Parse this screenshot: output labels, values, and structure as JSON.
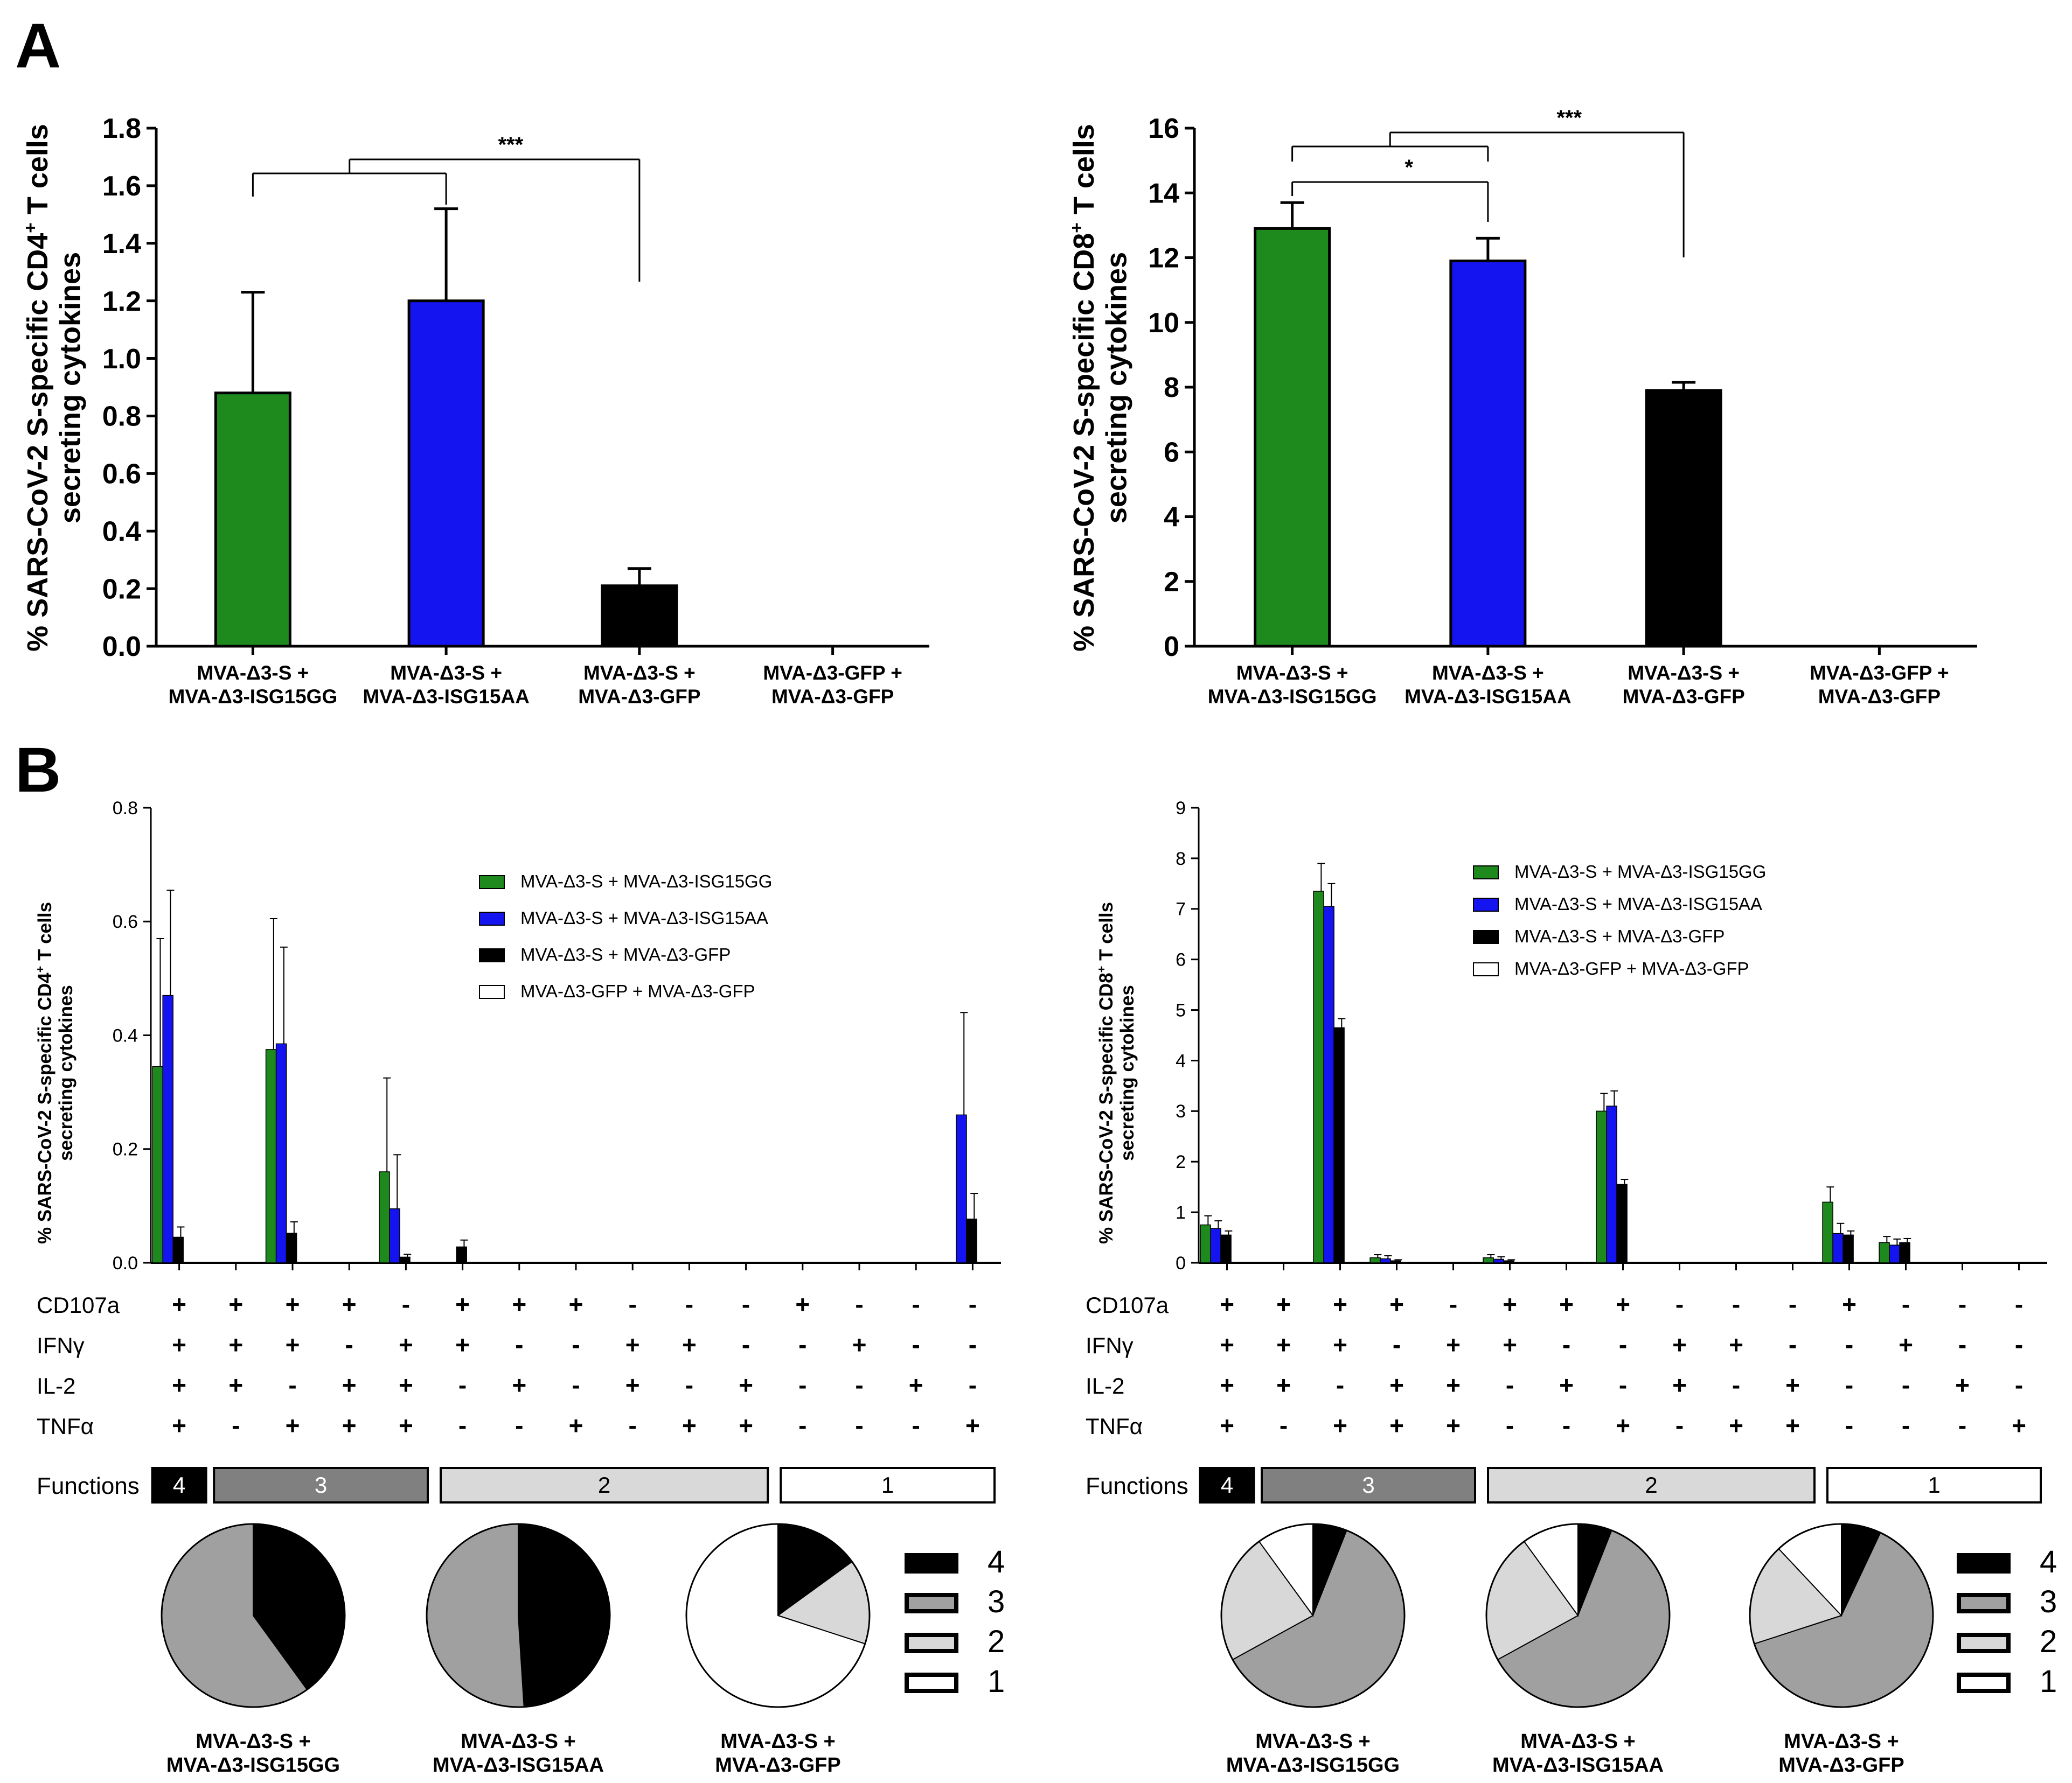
{
  "panel_labels": [
    "A",
    "B"
  ],
  "colors": {
    "green": "#1e8a1e",
    "blue": "#1414f0",
    "black": "#000000",
    "white": "#ffffff",
    "f4": "#000000",
    "f3": "#a0a0a0",
    "f2": "#d8d8d8",
    "f1": "#ffffff",
    "box3": "#808080",
    "box2": "#d9d9d9",
    "box1": "#ffffff"
  },
  "chart_data": [
    {
      "id": "A-left",
      "type": "bar",
      "ylabel_line1": "% SARS-CoV-2 S-specific CD4",
      "ylabel_sup": "+",
      "ylabel_line1_tail": " T cells",
      "ylabel_line2": "secreting cytokines",
      "ylim": [
        0,
        1.8
      ],
      "ticks": [
        0.0,
        0.2,
        0.4,
        0.6,
        0.8,
        1.0,
        1.2,
        1.4,
        1.6,
        1.8
      ],
      "tick_labels": [
        "0.0",
        "0.2",
        "0.4",
        "0.6",
        "0.8",
        "1.0",
        "1.2",
        "1.4",
        "1.6",
        "1.8"
      ],
      "categories": [
        [
          "MVA-Δ3-S +",
          "MVA-Δ3-ISG15GG"
        ],
        [
          "MVA-Δ3-S +",
          "MVA-Δ3-ISG15AA"
        ],
        [
          "MVA-Δ3-S +",
          "MVA-Δ3-GFP"
        ],
        [
          "MVA-Δ3-GFP +",
          "MVA-Δ3-GFP"
        ]
      ],
      "values": [
        0.88,
        1.2,
        0.21,
        0
      ],
      "errors": [
        0.35,
        0.32,
        0.06,
        0
      ],
      "colors": [
        "green",
        "blue",
        "black",
        "white"
      ],
      "significance": [
        {
          "label": "***",
          "groups": [
            [
              0,
              1
            ],
            [
              2
            ]
          ]
        }
      ]
    },
    {
      "id": "A-right",
      "type": "bar",
      "ylabel_line1": "% SARS-CoV-2 S-specific CD8",
      "ylabel_sup": "+",
      "ylabel_line1_tail": " T cells",
      "ylabel_line2": "secreting cytokines",
      "ylim": [
        0,
        16
      ],
      "ticks": [
        0,
        2,
        4,
        6,
        8,
        10,
        12,
        14,
        16
      ],
      "tick_labels": [
        "0",
        "2",
        "4",
        "6",
        "8",
        "10",
        "12",
        "14",
        "16"
      ],
      "categories": [
        [
          "MVA-Δ3-S +",
          "MVA-Δ3-ISG15GG"
        ],
        [
          "MVA-Δ3-S +",
          "MVA-Δ3-ISG15AA"
        ],
        [
          "MVA-Δ3-S +",
          "MVA-Δ3-GFP"
        ],
        [
          "MVA-Δ3-GFP +",
          "MVA-Δ3-GFP"
        ]
      ],
      "values": [
        12.9,
        11.9,
        7.9,
        0
      ],
      "errors": [
        0.8,
        0.7,
        0.25,
        0
      ],
      "colors": [
        "green",
        "blue",
        "black",
        "white"
      ],
      "significance": [
        {
          "label": "*",
          "groups": [
            [
              0
            ],
            [
              1
            ]
          ]
        },
        {
          "label": "***",
          "groups": [
            [
              0,
              1
            ],
            [
              2
            ]
          ]
        }
      ]
    },
    {
      "id": "B-left",
      "type": "grouped-bar",
      "ylabel_line1": "% SARS-CoV-2 S-specific CD4",
      "ylabel_sup": "+",
      "ylabel_line1_tail": " T cells",
      "ylabel_line2": "secreting cytokines",
      "ylim": [
        0,
        0.8
      ],
      "ticks": [
        0.0,
        0.2,
        0.4,
        0.6,
        0.8
      ],
      "tick_labels": [
        "0.0",
        "0.2",
        "0.4",
        "0.6",
        "0.8"
      ],
      "series": [
        {
          "name": "MVA-Δ3-S + MVA-Δ3-ISG15GG",
          "color": "green",
          "values": [
            0.345,
            0,
            0.375,
            0,
            0.16,
            0,
            0,
            0,
            0,
            0,
            0,
            0,
            0,
            0,
            0
          ],
          "errors": [
            0.225,
            0,
            0.23,
            0,
            0.165,
            0,
            0,
            0,
            0,
            0,
            0,
            0,
            0,
            0,
            0
          ]
        },
        {
          "name": "MVA-Δ3-S + MVA-Δ3-ISG15AA",
          "color": "blue",
          "values": [
            0.47,
            0,
            0.385,
            0,
            0.095,
            0,
            0,
            0,
            0,
            0,
            0,
            0,
            0,
            0,
            0.26
          ],
          "errors": [
            0.185,
            0,
            0.17,
            0,
            0.095,
            0,
            0,
            0,
            0,
            0,
            0,
            0,
            0,
            0,
            0.18
          ]
        },
        {
          "name": "MVA-Δ3-S + MVA-Δ3-GFP",
          "color": "black",
          "values": [
            0.045,
            0,
            0.052,
            0,
            0.01,
            0.028,
            0,
            0,
            0,
            0,
            0,
            0,
            0,
            0,
            0.077
          ],
          "errors": [
            0.018,
            0,
            0.02,
            0,
            0.005,
            0.012,
            0,
            0,
            0,
            0,
            0,
            0,
            0,
            0,
            0.045
          ]
        },
        {
          "name": "MVA-Δ3-GFP + MVA-Δ3-GFP",
          "color": "white",
          "values": [
            0,
            0,
            0,
            0,
            0,
            0,
            0,
            0,
            0,
            0,
            0,
            0,
            0,
            0,
            0
          ],
          "errors": [
            0,
            0,
            0,
            0,
            0,
            0,
            0,
            0,
            0,
            0,
            0,
            0,
            0,
            0,
            0
          ]
        }
      ],
      "combination_table": {
        "rows": [
          {
            "label": "CD107a",
            "marks": [
              "+",
              "+",
              "+",
              "+",
              "-",
              "+",
              "+",
              "+",
              "-",
              "-",
              "-",
              "+",
              "-",
              "-",
              "-"
            ]
          },
          {
            "label": "IFNγ",
            "marks": [
              "+",
              "+",
              "+",
              "-",
              "+",
              "+",
              "-",
              "-",
              "+",
              "+",
              "-",
              "-",
              "+",
              "-",
              "-"
            ]
          },
          {
            "label": "IL-2",
            "marks": [
              "+",
              "+",
              "-",
              "+",
              "+",
              "-",
              "+",
              "-",
              "+",
              "-",
              "+",
              "-",
              "-",
              "+",
              "-"
            ]
          },
          {
            "label": "TNFα",
            "marks": [
              "+",
              "-",
              "+",
              "+",
              "+",
              "-",
              "-",
              "+",
              "-",
              "+",
              "+",
              "-",
              "-",
              "-",
              "+"
            ]
          }
        ],
        "functions_label": "Functions",
        "functions": [
          {
            "label": "4",
            "start": 0,
            "end": 0,
            "fill": "f4"
          },
          {
            "label": "3",
            "start": 1,
            "end": 4,
            "fill": "box3"
          },
          {
            "label": "2",
            "start": 5,
            "end": 10,
            "fill": "box2"
          },
          {
            "label": "1",
            "start": 11,
            "end": 14,
            "fill": "box1"
          }
        ]
      },
      "pies": [
        {
          "title": [
            "MVA-Δ3-S +",
            "MVA-Δ3-ISG15GG"
          ],
          "slices": [
            {
              "key": "4",
              "value": 40
            },
            {
              "key": "3",
              "value": 60
            },
            {
              "key": "2",
              "value": 0
            },
            {
              "key": "1",
              "value": 0
            }
          ]
        },
        {
          "title": [
            "MVA-Δ3-S +",
            "MVA-Δ3-ISG15AA"
          ],
          "slices": [
            {
              "key": "4",
              "value": 49
            },
            {
              "key": "3",
              "value": 51
            },
            {
              "key": "2",
              "value": 0
            },
            {
              "key": "1",
              "value": 0
            }
          ]
        },
        {
          "title": [
            "MVA-Δ3-S +",
            "MVA-Δ3-GFP"
          ],
          "slices": [
            {
              "key": "4",
              "value": 15
            },
            {
              "key": "3",
              "value": 0
            },
            {
              "key": "2",
              "value": 15
            },
            {
              "key": "1",
              "value": 70
            }
          ]
        }
      ],
      "pie_legend": [
        "4",
        "3",
        "2",
        "1"
      ]
    },
    {
      "id": "B-right",
      "type": "grouped-bar",
      "ylabel_line1": "% SARS-CoV-2 S-specific CD8",
      "ylabel_sup": "+",
      "ylabel_line1_tail": " T cells",
      "ylabel_line2": "secreting cytokines",
      "ylim": [
        0,
        9
      ],
      "ticks": [
        0,
        1,
        2,
        3,
        4,
        5,
        6,
        7,
        8,
        9
      ],
      "tick_labels": [
        "0",
        "1",
        "2",
        "3",
        "4",
        "5",
        "6",
        "7",
        "8",
        "9"
      ],
      "series": [
        {
          "name": "MVA-Δ3-S + MVA-Δ3-ISG15GG",
          "color": "green",
          "values": [
            0.75,
            0,
            7.35,
            0.1,
            0,
            0.1,
            0,
            3.0,
            0,
            0,
            0,
            1.2,
            0.4,
            0,
            0
          ],
          "errors": [
            0.18,
            0,
            0.55,
            0.06,
            0,
            0.06,
            0,
            0.35,
            0,
            0,
            0,
            0.3,
            0.12,
            0,
            0
          ]
        },
        {
          "name": "MVA-Δ3-S + MVA-Δ3-ISG15AA",
          "color": "blue",
          "values": [
            0.68,
            0,
            7.05,
            0.08,
            0,
            0.07,
            0,
            3.1,
            0,
            0,
            0,
            0.58,
            0.35,
            0,
            0
          ],
          "errors": [
            0.15,
            0,
            0.45,
            0.06,
            0,
            0.05,
            0,
            0.3,
            0,
            0,
            0,
            0.2,
            0.12,
            0,
            0
          ]
        },
        {
          "name": "MVA-Δ3-S + MVA-Δ3-GFP",
          "color": "black",
          "values": [
            0.55,
            0,
            4.65,
            0.04,
            0,
            0.04,
            0,
            1.55,
            0,
            0,
            0,
            0.55,
            0.4,
            0,
            0
          ],
          "errors": [
            0.08,
            0,
            0.18,
            0.02,
            0,
            0.02,
            0,
            0.1,
            0,
            0,
            0,
            0.08,
            0.08,
            0,
            0
          ]
        },
        {
          "name": "MVA-Δ3-GFP + MVA-Δ3-GFP",
          "color": "white",
          "values": [
            0,
            0,
            0,
            0,
            0,
            0,
            0,
            0,
            0,
            0,
            0,
            0,
            0,
            0,
            0
          ],
          "errors": [
            0,
            0,
            0,
            0,
            0,
            0,
            0,
            0,
            0,
            0,
            0,
            0,
            0,
            0,
            0
          ]
        }
      ],
      "combination_table": {
        "rows": [
          {
            "label": "CD107a",
            "marks": [
              "+",
              "+",
              "+",
              "+",
              "-",
              "+",
              "+",
              "+",
              "-",
              "-",
              "-",
              "+",
              "-",
              "-",
              "-"
            ]
          },
          {
            "label": "IFNγ",
            "marks": [
              "+",
              "+",
              "+",
              "-",
              "+",
              "+",
              "-",
              "-",
              "+",
              "+",
              "-",
              "-",
              "+",
              "-",
              "-"
            ]
          },
          {
            "label": "IL-2",
            "marks": [
              "+",
              "+",
              "-",
              "+",
              "+",
              "-",
              "+",
              "-",
              "+",
              "-",
              "+",
              "-",
              "-",
              "+",
              "-"
            ]
          },
          {
            "label": "TNFα",
            "marks": [
              "+",
              "-",
              "+",
              "+",
              "+",
              "-",
              "-",
              "+",
              "-",
              "+",
              "+",
              "-",
              "-",
              "-",
              "+"
            ]
          }
        ],
        "functions_label": "Functions",
        "functions": [
          {
            "label": "4",
            "start": 0,
            "end": 0,
            "fill": "f4"
          },
          {
            "label": "3",
            "start": 1,
            "end": 4,
            "fill": "box3"
          },
          {
            "label": "2",
            "start": 5,
            "end": 10,
            "fill": "box2"
          },
          {
            "label": "1",
            "start": 11,
            "end": 14,
            "fill": "box1"
          }
        ]
      },
      "pies": [
        {
          "title": [
            "MVA-Δ3-S +",
            "MVA-Δ3-ISG15GG"
          ],
          "slices": [
            {
              "key": "4",
              "value": 6
            },
            {
              "key": "3",
              "value": 61
            },
            {
              "key": "2",
              "value": 23
            },
            {
              "key": "1",
              "value": 10
            }
          ]
        },
        {
          "title": [
            "MVA-Δ3-S +",
            "MVA-Δ3-ISG15AA"
          ],
          "slices": [
            {
              "key": "4",
              "value": 6
            },
            {
              "key": "3",
              "value": 61
            },
            {
              "key": "2",
              "value": 23
            },
            {
              "key": "1",
              "value": 10
            }
          ]
        },
        {
          "title": [
            "MVA-Δ3-S +",
            "MVA-Δ3-GFP"
          ],
          "slices": [
            {
              "key": "4",
              "value": 7
            },
            {
              "key": "3",
              "value": 63
            },
            {
              "key": "2",
              "value": 18
            },
            {
              "key": "1",
              "value": 12
            }
          ]
        }
      ],
      "pie_legend": [
        "4",
        "3",
        "2",
        "1"
      ]
    }
  ]
}
